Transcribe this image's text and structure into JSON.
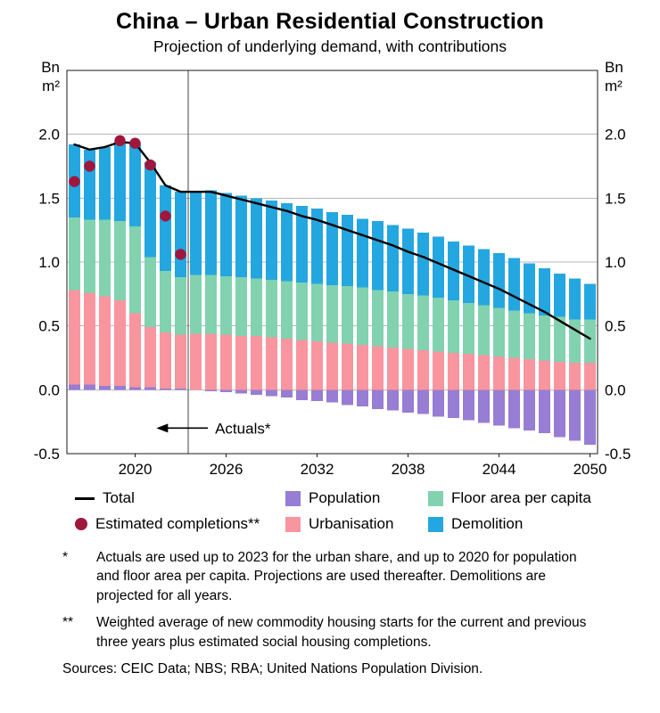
{
  "title": "China – Urban Residential Construction",
  "subtitle": "Projection of underlying demand, with contributions",
  "chart_data": {
    "type": "bar",
    "stacked": true,
    "unit_label": "Bn m²",
    "x": [
      2016,
      2017,
      2018,
      2019,
      2020,
      2021,
      2022,
      2023,
      2024,
      2025,
      2026,
      2027,
      2028,
      2029,
      2030,
      2031,
      2032,
      2033,
      2034,
      2035,
      2036,
      2037,
      2038,
      2039,
      2040,
      2041,
      2042,
      2043,
      2044,
      2045,
      2046,
      2047,
      2048,
      2049,
      2050
    ],
    "x_tick_labels": [
      2020,
      2026,
      2032,
      2038,
      2044,
      2050
    ],
    "y_ticks": [
      2.0,
      1.5,
      1.0,
      0.5,
      0.0,
      -0.5
    ],
    "ylim": [
      -0.5,
      2.5
    ],
    "grid": true,
    "actuals_end_year": 2023,
    "annotation": {
      "label": "Actuals*",
      "y": -0.3,
      "arrow_from_year": 2024.8,
      "arrow_to_year": 2021.4
    },
    "colors": {
      "grid": "#b8b8b8",
      "frame": "#1a1a1a",
      "divider": "#444444"
    },
    "series": [
      {
        "name": "Population",
        "type": "bar",
        "color": "#977dd3",
        "values": [
          0.04,
          0.04,
          0.03,
          0.03,
          0.02,
          0.02,
          0.01,
          0.01,
          0,
          -0.01,
          -0.02,
          -0.03,
          -0.04,
          -0.05,
          -0.06,
          -0.08,
          -0.09,
          -0.1,
          -0.12,
          -0.13,
          -0.15,
          -0.16,
          -0.18,
          -0.19,
          -0.21,
          -0.22,
          -0.24,
          -0.26,
          -0.28,
          -0.3,
          -0.32,
          -0.34,
          -0.37,
          -0.4,
          -0.43
        ]
      },
      {
        "name": "Urbanisation",
        "type": "bar",
        "color": "#f8959e",
        "values": [
          0.74,
          0.72,
          0.7,
          0.67,
          0.58,
          0.47,
          0.44,
          0.42,
          0.44,
          0.44,
          0.43,
          0.42,
          0.42,
          0.41,
          0.4,
          0.39,
          0.38,
          0.37,
          0.36,
          0.35,
          0.34,
          0.33,
          0.32,
          0.31,
          0.3,
          0.29,
          0.28,
          0.27,
          0.26,
          0.25,
          0.24,
          0.23,
          0.22,
          0.21,
          0.21
        ]
      },
      {
        "name": "Floor area per capita",
        "type": "bar",
        "color": "#82d2b0",
        "values": [
          0.57,
          0.57,
          0.6,
          0.62,
          0.68,
          0.55,
          0.48,
          0.45,
          0.46,
          0.46,
          0.46,
          0.46,
          0.45,
          0.45,
          0.45,
          0.45,
          0.45,
          0.45,
          0.45,
          0.45,
          0.44,
          0.44,
          0.43,
          0.43,
          0.42,
          0.41,
          0.4,
          0.39,
          0.38,
          0.37,
          0.36,
          0.35,
          0.35,
          0.34,
          0.34
        ]
      },
      {
        "name": "Demolition",
        "type": "bar",
        "color": "#24a7e0",
        "values": [
          0.57,
          0.55,
          0.57,
          0.62,
          0.65,
          0.74,
          0.67,
          0.67,
          0.65,
          0.66,
          0.65,
          0.64,
          0.63,
          0.62,
          0.61,
          0.6,
          0.59,
          0.57,
          0.56,
          0.54,
          0.54,
          0.52,
          0.51,
          0.49,
          0.48,
          0.46,
          0.45,
          0.44,
          0.43,
          0.41,
          0.39,
          0.37,
          0.34,
          0.32,
          0.28
        ]
      },
      {
        "name": "Total",
        "type": "line",
        "color": "#000000",
        "values": [
          1.92,
          1.88,
          1.9,
          1.94,
          1.93,
          1.78,
          1.6,
          1.55,
          1.55,
          1.55,
          1.52,
          1.49,
          1.46,
          1.43,
          1.4,
          1.36,
          1.33,
          1.29,
          1.25,
          1.21,
          1.17,
          1.13,
          1.08,
          1.04,
          0.99,
          0.94,
          0.89,
          0.84,
          0.79,
          0.73,
          0.67,
          0.61,
          0.54,
          0.47,
          0.4
        ]
      },
      {
        "name": "Estimated completions**",
        "type": "scatter",
        "color": "#a0173d",
        "points": [
          {
            "year": 2016,
            "value": 1.63
          },
          {
            "year": 2017,
            "value": 1.75
          },
          {
            "year": 2019,
            "value": 1.95
          },
          {
            "year": 2020,
            "value": 1.93
          },
          {
            "year": 2021,
            "value": 1.76
          },
          {
            "year": 2022,
            "value": 1.36
          },
          {
            "year": 2023,
            "value": 1.06
          }
        ]
      }
    ]
  },
  "legend": {
    "rows": [
      [
        "Total",
        "Population",
        "Floor area per capita"
      ],
      [
        "Estimated completions**",
        "Urbanisation",
        "Demolition"
      ]
    ]
  },
  "footnotes": [
    {
      "marker": "*",
      "text": "Actuals are used up to 2023 for the urban share, and up to 2020 for population and floor area per capita. Projections are used thereafter. Demolitions are projected for all years."
    },
    {
      "marker": "**",
      "text": "Weighted average of new commodity housing starts for the current and previous three years plus estimated social housing completions."
    }
  ],
  "sources": "Sources: CEIC Data; NBS; RBA; United Nations Population Division."
}
